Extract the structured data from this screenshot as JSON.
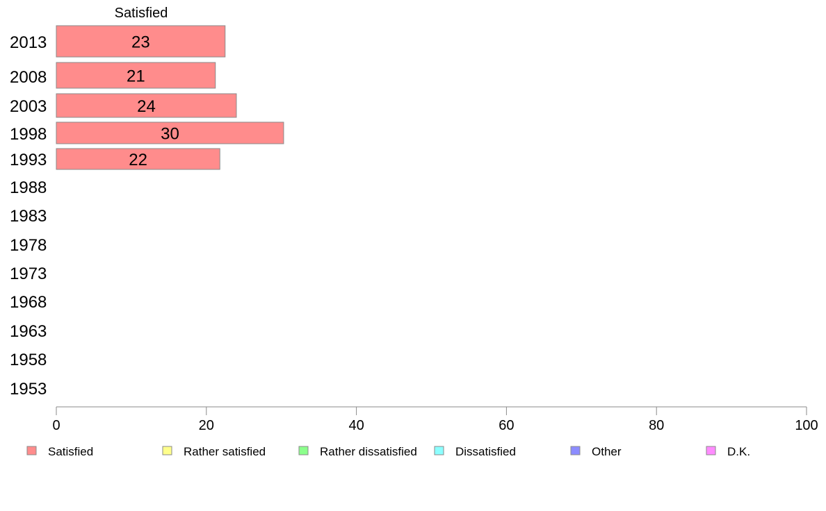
{
  "chart_data": {
    "type": "bar",
    "orientation": "horizontal",
    "stacked": true,
    "categories": [
      "2013",
      "2008",
      "2003",
      "1998",
      "1993",
      "1988",
      "1983",
      "1978",
      "1973",
      "1968",
      "1963",
      "1958",
      "1953"
    ],
    "series": [
      {
        "name": "Satisfied",
        "color": "#ff8c8c",
        "values": [
          23,
          21,
          24,
          30,
          22,
          null,
          null,
          null,
          null,
          null,
          null,
          null,
          null
        ]
      },
      {
        "name": "Rather satisfied",
        "color": "#ffff8c",
        "values": [
          null,
          null,
          null,
          null,
          null,
          null,
          null,
          null,
          null,
          null,
          null,
          null,
          null
        ]
      },
      {
        "name": "Rather dissatisfied",
        "color": "#8cff8c",
        "values": [
          null,
          null,
          null,
          null,
          null,
          null,
          null,
          null,
          null,
          null,
          null,
          null,
          null
        ]
      },
      {
        "name": "Dissatisfied",
        "color": "#8cffff",
        "values": [
          null,
          null,
          null,
          null,
          null,
          null,
          null,
          null,
          null,
          null,
          null,
          null,
          null
        ]
      },
      {
        "name": "Other",
        "color": "#8c8cff",
        "values": [
          null,
          null,
          null,
          null,
          null,
          null,
          null,
          null,
          null,
          null,
          null,
          null,
          null
        ]
      },
      {
        "name": "D.K.",
        "color": "#ff8cff",
        "values": [
          null,
          null,
          null,
          null,
          null,
          null,
          null,
          null,
          null,
          null,
          null,
          null,
          null
        ]
      }
    ],
    "bar_values_precise": [
      22.5,
      21.2,
      24.0,
      30.3,
      21.8
    ],
    "series_header": "Satisfied",
    "xlim": [
      0,
      100
    ],
    "xticks": [
      0,
      20,
      40,
      60,
      80,
      100
    ],
    "grid": false,
    "legend_position": "bottom"
  }
}
